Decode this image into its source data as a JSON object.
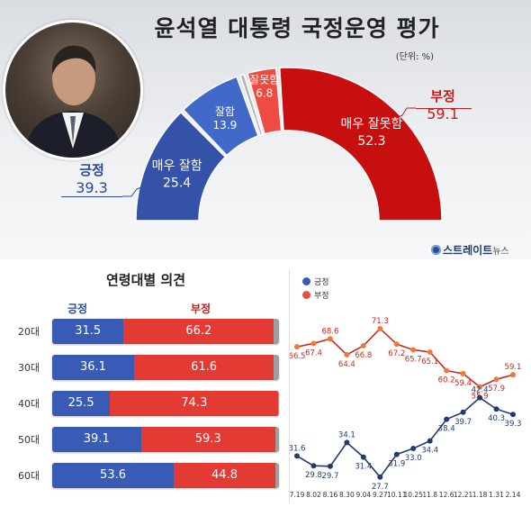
{
  "title": "윤석열 대통령 국정운영 평가",
  "unit": "(단위: %)",
  "brand": {
    "name": "스트레이트",
    "suffix": "뉴스"
  },
  "colors": {
    "positive": "#3a5bb5",
    "negative": "#d10f0f",
    "light_negative": "#ee4b42",
    "light_positive": "#4169c9"
  },
  "photo": {
    "icon": "person-portrait-icon"
  },
  "chart_data": [
    {
      "type": "pie",
      "style": "half-donut",
      "segments": [
        {
          "label": "매우 잘함",
          "value": 25.4,
          "color": "#3352a8"
        },
        {
          "label": "잘함",
          "value": 13.9,
          "color": "#4169c9"
        },
        {
          "label": "",
          "value": 1.6,
          "color": "#b5b5b5"
        },
        {
          "label": "잘못함",
          "value": 6.8,
          "color": "#ee4b42"
        },
        {
          "label": "매우 잘못함",
          "value": 52.3,
          "color": "#c80f0f"
        }
      ],
      "totals": {
        "positive": {
          "label": "긍정",
          "value": "39.3"
        },
        "negative": {
          "label": "부정",
          "value": "59.1"
        }
      }
    },
    {
      "type": "bar",
      "stacked": true,
      "title": "연령대별 의견",
      "series_labels": {
        "positive": "긍정",
        "negative": "부정"
      },
      "categories": [
        "20대",
        "30대",
        "40대",
        "50대",
        "60대"
      ],
      "positive": [
        31.5,
        36.1,
        25.5,
        39.1,
        53.6
      ],
      "negative": [
        66.2,
        61.6,
        74.3,
        59.3,
        44.8
      ]
    },
    {
      "type": "line",
      "x": [
        "7.19",
        "8.02",
        "8.16",
        "8.30",
        "9.04",
        "9.27",
        "10.11",
        "10.25",
        "11.8",
        "12.6",
        "12.21",
        "1.18",
        "1.31",
        "2.14"
      ],
      "series": [
        {
          "name": "긍정",
          "color": "#1f3b6f",
          "label_color": "#1f3b6f",
          "values": [
            31.6,
            29.8,
            29.7,
            34.1,
            31.4,
            27.7,
            31.9,
            33.0,
            34.4,
            38.4,
            39.7,
            42.4,
            40.3,
            39.3
          ]
        },
        {
          "name": "부정",
          "color": "#c7291f",
          "point_color": "#f07838",
          "values": [
            66.5,
            67.4,
            68.6,
            64.4,
            66.8,
            71.3,
            67.2,
            65.7,
            65.1,
            60.2,
            59.4,
            55.9,
            57.9,
            59.1
          ]
        }
      ]
    }
  ]
}
